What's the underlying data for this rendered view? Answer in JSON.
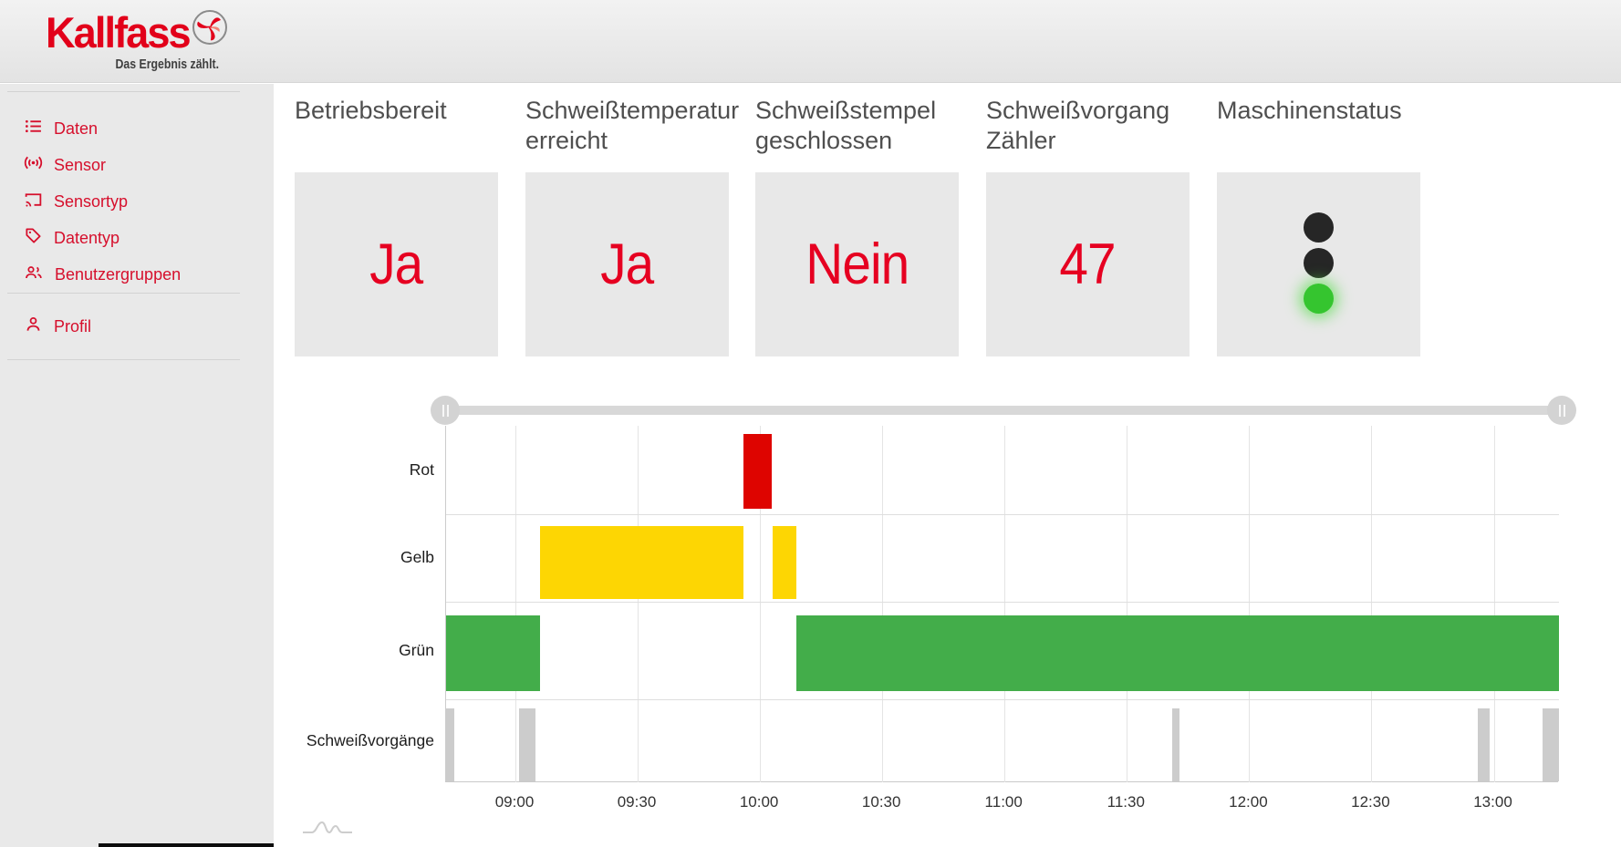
{
  "header": {
    "logo_text": "Kallfass",
    "tagline": "Das Ergebnis zählt."
  },
  "sidebar": {
    "items": [
      {
        "label": "Daten",
        "icon": "list-icon"
      },
      {
        "label": "Sensor",
        "icon": "sensor-icon"
      },
      {
        "label": "Sensortyp",
        "icon": "cast-icon"
      },
      {
        "label": "Datentyp",
        "icon": "tag-icon"
      },
      {
        "label": "Benutzergruppen",
        "icon": "users-icon"
      }
    ],
    "profile": {
      "label": "Profil",
      "icon": "person-icon"
    }
  },
  "cards": [
    {
      "title": "Betriebsbereit",
      "value": "Ja"
    },
    {
      "title": "Schweißtemperatur erreicht",
      "value": "Ja"
    },
    {
      "title": "Schweißstempel geschlossen",
      "value": "Nein"
    },
    {
      "title": "Schweißvorgang Zähler",
      "value": "47"
    },
    {
      "title": "Maschinenstatus",
      "type": "traffic-light",
      "lights": [
        {
          "name": "red-light",
          "state": "off"
        },
        {
          "name": "yellow-light",
          "state": "off"
        },
        {
          "name": "green-light",
          "state": "green"
        }
      ]
    }
  ],
  "colors": {
    "brand_red": "#e2001a",
    "value_red": "#e60021",
    "bar_red": "#de0400",
    "bar_yellow": "#fdd603",
    "bar_green": "#43ad4a",
    "bar_gray": "#cccccc",
    "active_light_green": "#35c52f",
    "card_bg": "#e8e8e8",
    "sidebar_bg": "#e9e9e9"
  },
  "chart_data": {
    "type": "timeline",
    "title": "",
    "x_axis": {
      "start": "08:43",
      "end": "13:16",
      "ticks": [
        "09:00",
        "09:30",
        "10:00",
        "10:30",
        "11:00",
        "11:30",
        "12:00",
        "12:30",
        "13:00"
      ],
      "grid": true
    },
    "rows": [
      {
        "label": "Rot",
        "color": "#de0400",
        "segments": [
          [
            "09:56",
            "10:03"
          ]
        ]
      },
      {
        "label": "Gelb",
        "color": "#fdd603",
        "segments": [
          [
            "09:06",
            "09:56"
          ],
          [
            "10:03",
            "10:09"
          ]
        ]
      },
      {
        "label": "Grün",
        "color": "#43ad4a",
        "segments": [
          [
            "08:43",
            "09:06"
          ],
          [
            "10:09",
            "13:16"
          ]
        ]
      },
      {
        "label": "Schweißvorgänge",
        "color": "#cccccc",
        "segments": [
          [
            "08:43",
            "08:45"
          ],
          [
            "09:01",
            "09:05"
          ],
          [
            "11:41",
            "11:43"
          ],
          [
            "12:56",
            "12:59"
          ],
          [
            "13:12",
            "13:16"
          ]
        ]
      }
    ]
  }
}
